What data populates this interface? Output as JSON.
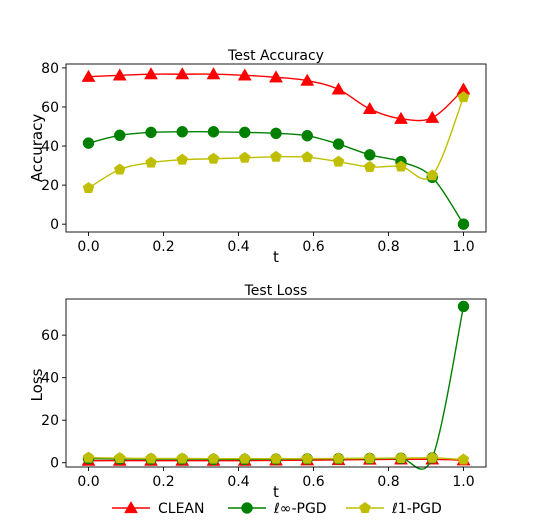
{
  "chart_data": [
    {
      "type": "line",
      "title": "Test Accuracy",
      "xlabel": "t",
      "ylabel": "Accuracy",
      "xlim": [
        -0.06,
        1.06
      ],
      "ylim": [
        -4,
        82
      ],
      "xticks": [
        "0.0",
        "0.2",
        "0.4",
        "0.6",
        "0.8",
        "1.0"
      ],
      "yticks": [
        "0",
        "20",
        "40",
        "60",
        "80"
      ],
      "grid": false,
      "x": [
        0,
        0.0833,
        0.1667,
        0.25,
        0.3333,
        0.4167,
        0.5,
        0.5833,
        0.6667,
        0.75,
        0.8333,
        0.9167,
        1.0
      ],
      "series": [
        {
          "name": "CLEAN",
          "color": "#ff0000",
          "marker": "triangle",
          "values": [
            75.5,
            76.2,
            76.8,
            76.8,
            76.8,
            76.2,
            75.2,
            73.5,
            69,
            59,
            54,
            54.5,
            69
          ]
        },
        {
          "name": "ℓ∞-PGD",
          "color": "#008000",
          "marker": "circle",
          "values": [
            41.5,
            45.5,
            47,
            47.3,
            47.3,
            47,
            46.5,
            45.3,
            41,
            35.5,
            32,
            24,
            0
          ]
        },
        {
          "name": "ℓ1-PGD",
          "color": "#bfbf00",
          "marker": "pentagon",
          "values": [
            18.5,
            28,
            31.5,
            33,
            33.5,
            34,
            34.5,
            34.3,
            32,
            29.3,
            29.5,
            25,
            65
          ]
        }
      ]
    },
    {
      "type": "line",
      "title": "Test Loss",
      "xlabel": "t",
      "ylabel": "Loss",
      "xlim": [
        -0.06,
        1.06
      ],
      "ylim": [
        -2,
        77
      ],
      "xticks": [
        "0.0",
        "0.2",
        "0.4",
        "0.6",
        "0.8",
        "1.0"
      ],
      "yticks": [
        "0",
        "20",
        "40",
        "60"
      ],
      "grid": false,
      "x": [
        0,
        0.0833,
        0.1667,
        0.25,
        0.3333,
        0.4167,
        0.5,
        0.5833,
        0.6667,
        0.75,
        0.8333,
        0.9167,
        1.0
      ],
      "series": [
        {
          "name": "CLEAN",
          "color": "#ff0000",
          "marker": "triangle",
          "values": [
            1.0,
            1.0,
            1.0,
            1.0,
            1.0,
            1.0,
            1.1,
            1.2,
            1.3,
            1.5,
            1.6,
            1.6,
            1.2
          ]
        },
        {
          "name": "ℓ∞-PGD",
          "color": "#008000",
          "marker": "circle",
          "values": [
            2.0,
            1.8,
            1.7,
            1.7,
            1.6,
            1.6,
            1.7,
            1.8,
            1.9,
            2.0,
            2.1,
            2.3,
            73.5
          ]
        },
        {
          "name": "ℓ1-PGD",
          "color": "#bfbf00",
          "marker": "pentagon",
          "values": [
            2.4,
            2.2,
            2.0,
            2.0,
            1.9,
            1.9,
            1.9,
            1.9,
            2.0,
            2.1,
            2.2,
            2.3,
            1.5
          ]
        }
      ]
    }
  ],
  "legend": {
    "placement": "bottom",
    "items": [
      {
        "label": "CLEAN",
        "color": "#ff0000",
        "marker": "triangle"
      },
      {
        "label": "ℓ∞-PGD",
        "color": "#008000",
        "marker": "circle"
      },
      {
        "label": "ℓ1-PGD",
        "color": "#bfbf00",
        "marker": "pentagon"
      }
    ]
  }
}
